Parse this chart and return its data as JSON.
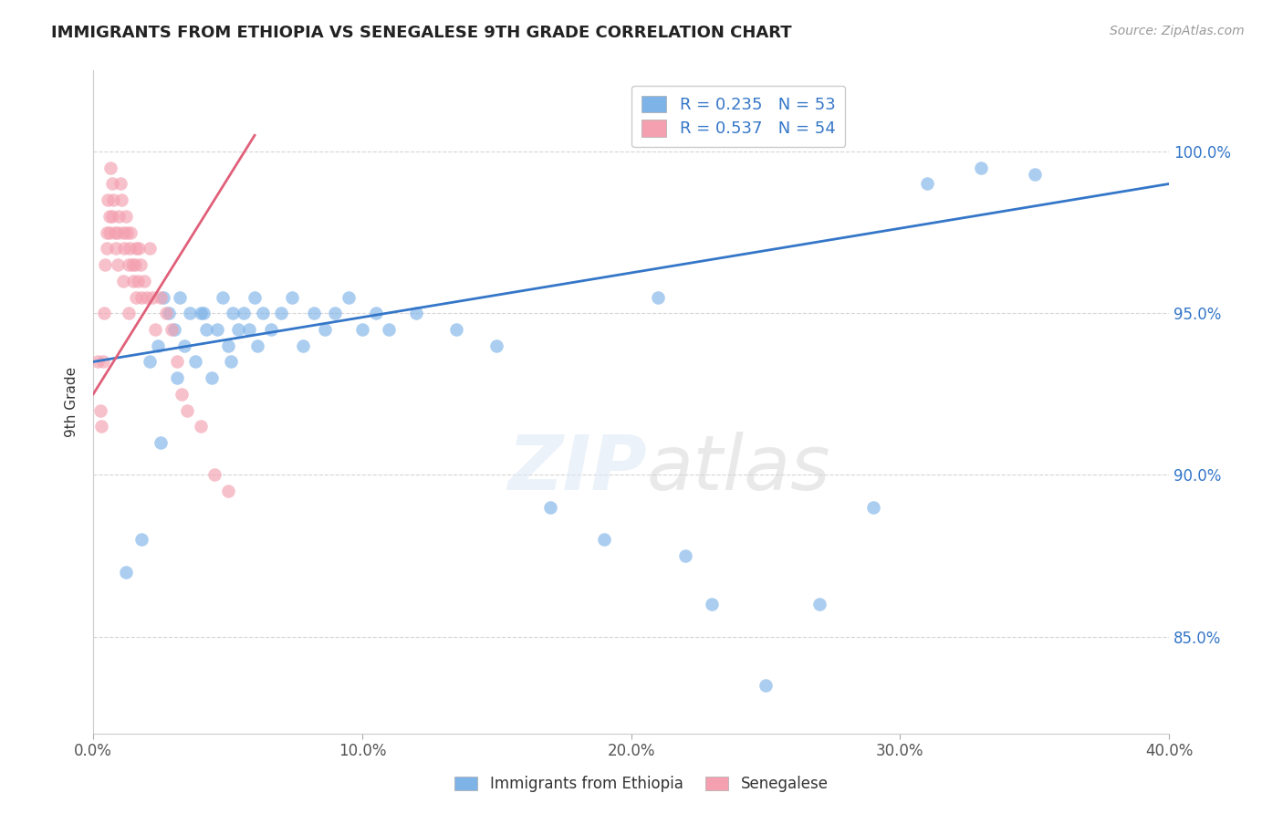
{
  "title": "IMMIGRANTS FROM ETHIOPIA VS SENEGALESE 9TH GRADE CORRELATION CHART",
  "source": "Source: ZipAtlas.com",
  "ylabel": "9th Grade",
  "xlabel_ticks": [
    "0.0%",
    "10.0%",
    "20.0%",
    "30.0%",
    "40.0%"
  ],
  "xlabel_vals": [
    0.0,
    10.0,
    20.0,
    30.0,
    40.0
  ],
  "ylabel_ticks": [
    "85.0%",
    "90.0%",
    "95.0%",
    "100.0%"
  ],
  "ylabel_vals": [
    85.0,
    90.0,
    95.0,
    100.0
  ],
  "xlim": [
    0.0,
    40.0
  ],
  "ylim": [
    82.0,
    102.5
  ],
  "legend1_label": "R = 0.235   N = 53",
  "legend2_label": "R = 0.537   N = 54",
  "legend_bottom1": "Immigrants from Ethiopia",
  "legend_bottom2": "Senegalese",
  "blue_color": "#7EB3E8",
  "pink_color": "#F4A0B0",
  "blue_line_color": "#3476C8",
  "pink_line_color": "#E0607A",
  "legend_text_color": "#3476C8",
  "blue_scatter_x": [
    1.2,
    1.8,
    2.1,
    2.4,
    2.6,
    2.8,
    3.0,
    3.2,
    3.4,
    3.6,
    3.8,
    4.0,
    4.2,
    4.4,
    4.6,
    4.8,
    5.0,
    5.2,
    5.4,
    5.6,
    5.8,
    6.0,
    6.3,
    6.6,
    7.0,
    7.4,
    7.8,
    8.2,
    8.6,
    9.0,
    9.5,
    10.0,
    10.5,
    11.0,
    12.0,
    13.5,
    15.0,
    17.0,
    19.0,
    21.0,
    22.0,
    23.0,
    25.0,
    27.0,
    29.0,
    31.0,
    33.0,
    35.0,
    2.5,
    3.1,
    4.1,
    5.1,
    6.1
  ],
  "blue_scatter_y": [
    87.0,
    88.0,
    93.5,
    94.0,
    95.5,
    95.0,
    94.5,
    95.5,
    94.0,
    95.0,
    93.5,
    95.0,
    94.5,
    93.0,
    94.5,
    95.5,
    94.0,
    95.0,
    94.5,
    95.0,
    94.5,
    95.5,
    95.0,
    94.5,
    95.0,
    95.5,
    94.0,
    95.0,
    94.5,
    95.0,
    95.5,
    94.5,
    95.0,
    94.5,
    95.0,
    94.5,
    94.0,
    89.0,
    88.0,
    95.5,
    87.5,
    86.0,
    83.5,
    86.0,
    89.0,
    99.0,
    99.5,
    99.3,
    91.0,
    93.0,
    95.0,
    93.5,
    94.0
  ],
  "pink_scatter_x": [
    0.15,
    0.25,
    0.35,
    0.45,
    0.5,
    0.55,
    0.6,
    0.65,
    0.7,
    0.75,
    0.8,
    0.85,
    0.9,
    0.95,
    1.0,
    1.05,
    1.1,
    1.15,
    1.2,
    1.25,
    1.3,
    1.35,
    1.4,
    1.45,
    1.5,
    1.55,
    1.6,
    1.65,
    1.7,
    1.75,
    1.8,
    1.9,
    2.0,
    2.1,
    2.2,
    2.3,
    2.5,
    2.7,
    2.9,
    3.1,
    3.3,
    3.5,
    4.0,
    4.5,
    5.0,
    0.3,
    0.4,
    0.6,
    0.9,
    1.1,
    1.3,
    0.5,
    1.6,
    0.7
  ],
  "pink_scatter_y": [
    93.5,
    92.0,
    93.5,
    96.5,
    97.5,
    98.5,
    98.0,
    99.5,
    99.0,
    98.5,
    97.5,
    97.0,
    97.5,
    98.0,
    99.0,
    98.5,
    97.5,
    97.0,
    98.0,
    97.5,
    96.5,
    97.0,
    97.5,
    96.5,
    96.0,
    96.5,
    97.0,
    96.0,
    97.0,
    96.5,
    95.5,
    96.0,
    95.5,
    97.0,
    95.5,
    94.5,
    95.5,
    95.0,
    94.5,
    93.5,
    92.5,
    92.0,
    91.5,
    90.0,
    89.5,
    91.5,
    95.0,
    97.5,
    96.5,
    96.0,
    95.0,
    97.0,
    95.5,
    98.0
  ],
  "blue_regline_x": [
    0.0,
    40.0
  ],
  "blue_regline_y": [
    93.5,
    99.0
  ],
  "pink_regline_x": [
    0.0,
    6.0
  ],
  "pink_regline_y": [
    92.5,
    100.5
  ]
}
